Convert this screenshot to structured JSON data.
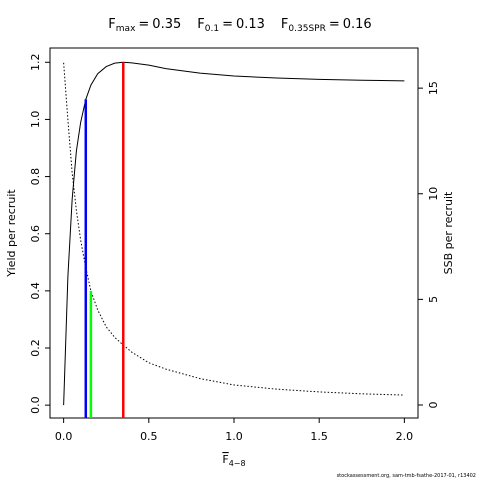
{
  "chart_data": {
    "type": "line",
    "title_parts": [
      {
        "base": "F",
        "sub": "max",
        "eq": "=",
        "value": 0.35
      },
      {
        "base": "F",
        "sub": "0.1",
        "eq": "=",
        "value": 0.13
      },
      {
        "base": "F",
        "sub": "0.35SPR",
        "eq": "=",
        "value": 0.16
      }
    ],
    "x_label": {
      "base": "F",
      "sub": "4−8"
    },
    "y_label": "Yield per recruit",
    "y2_label": "SSB per recruit",
    "footnote": "stockassessment.org, sam-tmb-fsathe-2017-01, r13402",
    "x": [
      0,
      0.025,
      0.05,
      0.075,
      0.1,
      0.13,
      0.16,
      0.2,
      0.25,
      0.3,
      0.35,
      0.4,
      0.5,
      0.6,
      0.8,
      1.0,
      1.25,
      1.5,
      1.75,
      2.0
    ],
    "series": [
      {
        "name": "Yield per recruit",
        "color": "#000000",
        "dash": "none",
        "values": [
          0,
          0.45,
          0.72,
          0.89,
          0.99,
          1.07,
          1.12,
          1.16,
          1.185,
          1.197,
          1.2,
          1.198,
          1.19,
          1.178,
          1.162,
          1.152,
          1.145,
          1.14,
          1.137,
          1.135
        ]
      },
      {
        "name": "SSB per recruit",
        "color": "#000000",
        "dash": "1.5 2",
        "axis": "y2",
        "values": [
          16.2,
          13.5,
          11.0,
          9.2,
          7.8,
          6.5,
          5.4,
          4.5,
          3.7,
          3.2,
          2.84,
          2.5,
          2.0,
          1.7,
          1.25,
          0.95,
          0.75,
          0.62,
          0.53,
          0.47
        ]
      }
    ],
    "reference_lines": [
      {
        "x": 0.35,
        "y": 1.2,
        "color": "#ff0000"
      },
      {
        "x": 0.13,
        "y": 1.07,
        "color": "#0000ff"
      },
      {
        "x": 0.16,
        "y": 0.4,
        "color": "#00ff00"
      }
    ],
    "xlim": [
      -0.08,
      2.08
    ],
    "xticks": [
      {
        "value": 0,
        "label": "0.0"
      },
      0.5,
      {
        "value": 1,
        "label": "1.0"
      },
      1.5,
      {
        "value": 2,
        "label": "2.0"
      }
    ],
    "ylim": [
      -0.045,
      1.25
    ],
    "yticks": [
      {
        "value": 0,
        "label": "0.0"
      },
      0.2,
      0.4,
      0.6,
      0.8,
      {
        "value": 1,
        "label": "1.0"
      },
      1.2
    ],
    "y2lim": [
      -0.615,
      16.9
    ],
    "y2ticks": [
      0,
      5,
      10,
      15
    ]
  }
}
